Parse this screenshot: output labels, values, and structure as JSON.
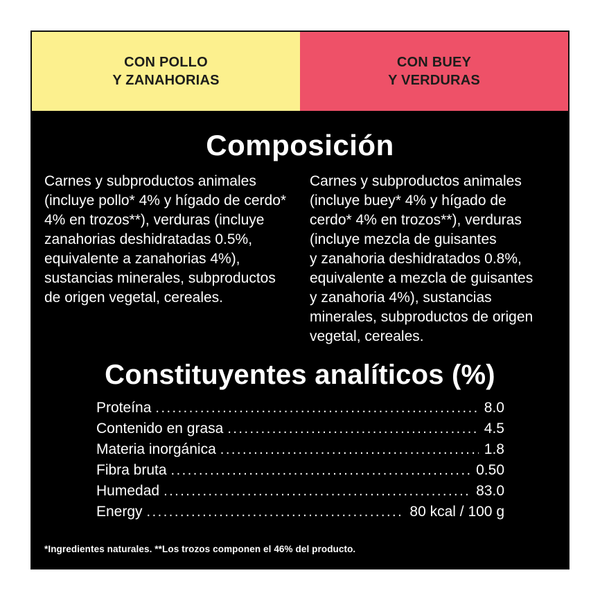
{
  "tabs": [
    {
      "label": "CON POLLO\nY ZANAHORIAS",
      "bg_color": "#FCF08E"
    },
    {
      "label": "CON BUEY\nY VERDURAS",
      "bg_color": "#EE5168"
    }
  ],
  "composition": {
    "title": "Composición",
    "left_column": "Carnes y subproductos animales\n(incluye pollo* 4% y hígado de cerdo*\n4% en trozos**), verduras (incluye\nzanahorias deshidratadas 0.5%,\nequivalente a zanahorias 4%),\nsustancias minerales, subproductos\nde origen vegetal, cereales.",
    "right_column": "Carnes y subproductos animales\n(incluye buey* 4% y hígado de\ncerdo* 4% en trozos**), verduras\n(incluye mezcla de guisantes\ny zanahoria deshidratados 0.8%,\nequivalente a mezcla de guisantes\ny zanahoria 4%), sustancias\nminerales, subproductos de origen\nvegetal, cereales."
  },
  "analytical": {
    "title": "Constituyentes analíticos (%)",
    "rows": [
      {
        "label": "Proteína",
        "value": "8.0"
      },
      {
        "label": "Contenido en grasa",
        "value": "4.5"
      },
      {
        "label": "Materia inorgánica",
        "value": "1.8"
      },
      {
        "label": "Fibra bruta",
        "value": "0.50"
      },
      {
        "label": "Humedad",
        "value": "83.0"
      },
      {
        "label": "Energy",
        "value": "80 kcal / 100 g"
      }
    ]
  },
  "footnote": "*Ingredientes naturales. **Los trozos componen el 46% del producto.",
  "colors": {
    "panel_background": "#000000",
    "tab_yellow": "#FCF08E",
    "tab_pink": "#EE5168",
    "text_on_tabs": "#1D1D1B",
    "text_on_panel": "#FFFFFF"
  }
}
